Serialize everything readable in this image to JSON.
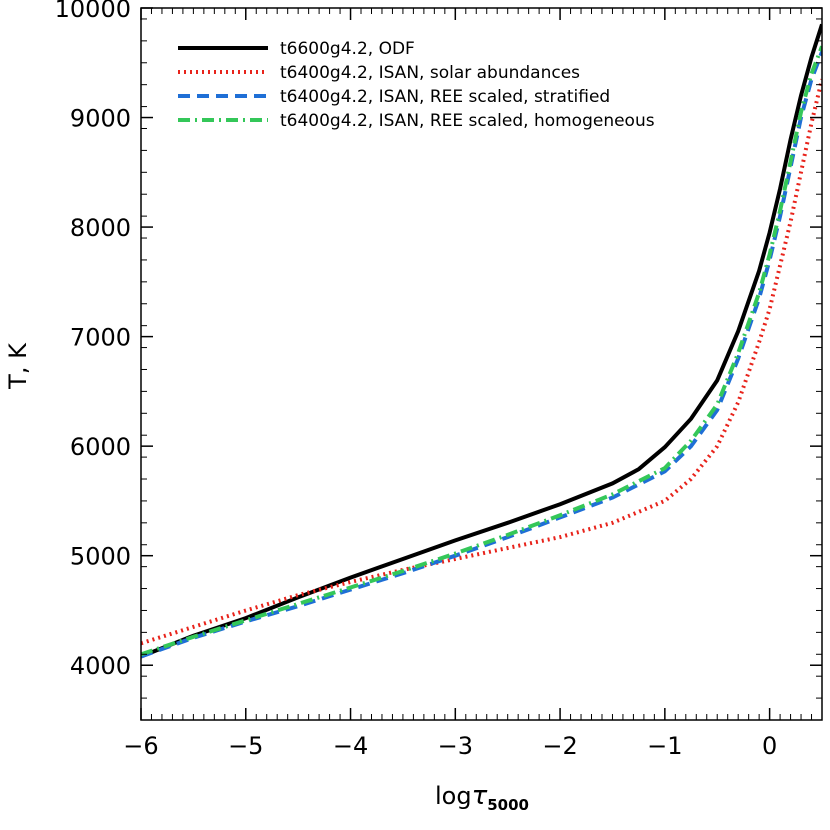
{
  "chart_data": {
    "type": "line",
    "xlabel_base": "log",
    "xlabel_symbol": "τ",
    "xlabel_sub": "5000",
    "ylabel": "T, K",
    "xlim": [
      -6.0,
      0.5
    ],
    "ylim": [
      3500,
      10000
    ],
    "x_ticks": [
      -6,
      -5,
      -4,
      -3,
      -2,
      -1,
      0
    ],
    "x_tick_labels": [
      "−6",
      "−5",
      "−4",
      "−3",
      "−2",
      "−1",
      "0"
    ],
    "y_ticks": [
      4000,
      5000,
      6000,
      7000,
      8000,
      9000,
      10000
    ],
    "y_tick_labels": [
      "4000",
      "5000",
      "6000",
      "7000",
      "8000",
      "9000",
      "10000"
    ],
    "grid": false,
    "legend_position": "top-left",
    "series": [
      {
        "name": "t6600g4.2, ODF",
        "color": "#000000",
        "dash": "solid",
        "x": [
          -6.0,
          -5.5,
          -5.0,
          -4.5,
          -4.0,
          -3.5,
          -3.0,
          -2.5,
          -2.0,
          -1.5,
          -1.25,
          -1.0,
          -0.75,
          -0.5,
          -0.3,
          -0.1,
          0.0,
          0.1,
          0.2,
          0.3,
          0.4,
          0.5
        ],
        "y": [
          4080,
          4270,
          4430,
          4620,
          4800,
          4970,
          5140,
          5300,
          5470,
          5660,
          5790,
          5990,
          6250,
          6600,
          7050,
          7600,
          7950,
          8350,
          8800,
          9200,
          9550,
          9850
        ]
      },
      {
        "name": "t6400g4.2, ISAN, solar abundances",
        "color": "#e8231b",
        "dash": "dotted",
        "x": [
          -6.0,
          -5.5,
          -5.0,
          -4.5,
          -4.0,
          -3.5,
          -3.0,
          -2.5,
          -2.0,
          -1.5,
          -1.0,
          -0.75,
          -0.5,
          -0.3,
          -0.1,
          0.0,
          0.1,
          0.2,
          0.3,
          0.4,
          0.5
        ],
        "y": [
          4200,
          4350,
          4500,
          4640,
          4760,
          4870,
          4970,
          5070,
          5170,
          5300,
          5500,
          5700,
          6000,
          6400,
          6950,
          7250,
          7650,
          8050,
          8500,
          8950,
          9350
        ]
      },
      {
        "name": "t6400g4.2, ISAN, REE scaled, stratified",
        "color": "#1f6fd6",
        "dash": "dashed",
        "x": [
          -6.0,
          -5.5,
          -5.0,
          -4.5,
          -4.0,
          -3.5,
          -3.0,
          -2.5,
          -2.0,
          -1.5,
          -1.0,
          -0.75,
          -0.5,
          -0.3,
          -0.1,
          0.0,
          0.1,
          0.2,
          0.3,
          0.4,
          0.5
        ],
        "y": [
          4080,
          4250,
          4400,
          4540,
          4690,
          4840,
          5000,
          5170,
          5350,
          5530,
          5770,
          6000,
          6330,
          6800,
          7350,
          7700,
          8100,
          8550,
          9000,
          9350,
          9600
        ]
      },
      {
        "name": "t6400g4.2, ISAN, REE scaled, homogeneous",
        "color": "#34c759",
        "dash": "dashdot",
        "x": [
          -6.0,
          -5.5,
          -5.0,
          -4.5,
          -4.0,
          -3.5,
          -3.0,
          -2.5,
          -2.0,
          -1.5,
          -1.0,
          -0.75,
          -0.5,
          -0.3,
          -0.1,
          0.0,
          0.1,
          0.2,
          0.3,
          0.4,
          0.5
        ],
        "y": [
          4100,
          4260,
          4410,
          4560,
          4710,
          4860,
          5020,
          5190,
          5370,
          5560,
          5800,
          6050,
          6380,
          6850,
          7400,
          7750,
          8150,
          8600,
          9050,
          9400,
          9650
        ]
      }
    ]
  }
}
